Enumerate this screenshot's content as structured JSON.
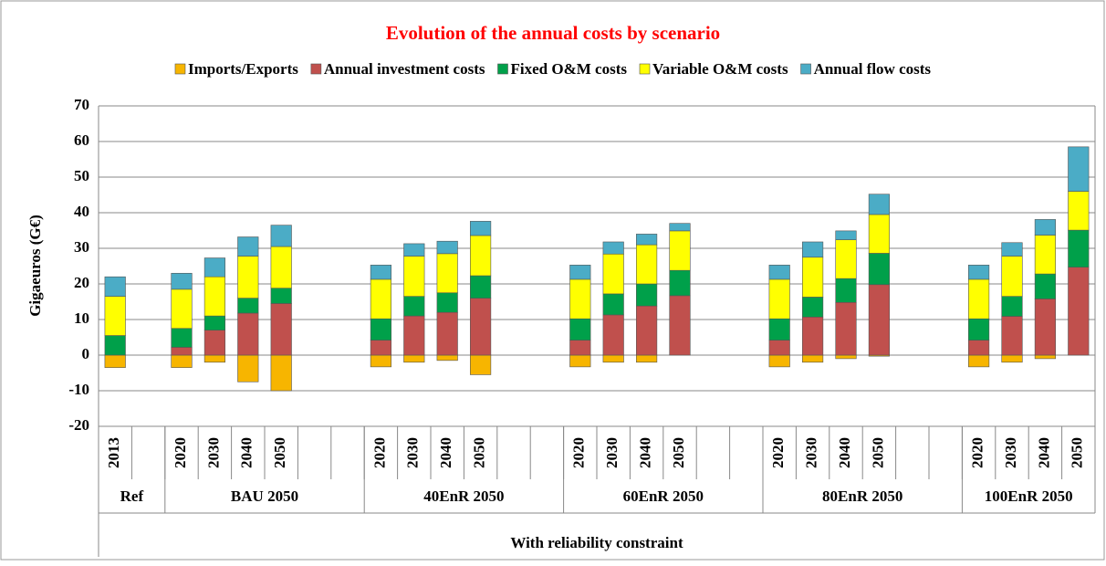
{
  "chart_data": {
    "type": "stacked-bar",
    "title": "Evolution of the annual costs by scenario",
    "y_label": "Gigaeuros (G€)",
    "x_label": "With reliability constraint",
    "groups": [
      {
        "name": "Ref",
        "categories": [
          "2013",
          null
        ]
      },
      {
        "name": "BAU 2050",
        "categories": [
          "2020",
          "2030",
          "2040",
          "2050",
          null,
          null
        ]
      },
      {
        "name": "40EnR 2050",
        "categories": [
          "2020",
          "2030",
          "2040",
          "2050",
          null,
          null
        ]
      },
      {
        "name": "60EnR 2050",
        "categories": [
          "2020",
          "2030",
          "2040",
          "2050",
          null,
          null
        ]
      },
      {
        "name": "80EnR 2050",
        "categories": [
          "2020",
          "2030",
          "2040",
          "2050",
          null,
          null
        ]
      },
      {
        "name": "100EnR 2050",
        "categories": [
          "2020",
          "2030",
          "2040",
          "2050"
        ]
      }
    ],
    "series": [
      {
        "name": "Imports/Exports",
        "color": "#f7b500",
        "values": [
          -3.5,
          null,
          -3.5,
          -2,
          -7.5,
          -10,
          null,
          null,
          -3.3,
          -2,
          -1.5,
          -5.5,
          null,
          null,
          -3.3,
          -2,
          -2,
          0,
          null,
          null,
          -3.3,
          -2,
          -1,
          -0.3,
          null,
          null,
          -3.3,
          -2,
          -1,
          0
        ]
      },
      {
        "name": "Annual investment costs",
        "color": "#c0504d",
        "values": [
          0,
          null,
          2.2,
          7,
          11.8,
          14.5,
          null,
          null,
          4.2,
          11,
          12,
          16,
          null,
          null,
          4.2,
          11.3,
          13.8,
          16.7,
          null,
          null,
          4.2,
          10.7,
          14.8,
          19.8,
          null,
          null,
          4.2,
          10.9,
          15.8,
          24.7
        ]
      },
      {
        "name": "Fixed O&M costs",
        "color": "#00a04a",
        "values": [
          5.5,
          null,
          5.3,
          4,
          4.2,
          4.3,
          null,
          null,
          6,
          5.5,
          5.5,
          6.3,
          null,
          null,
          6,
          5.9,
          6.2,
          7.1,
          null,
          null,
          6,
          5.6,
          6.7,
          8.8,
          null,
          null,
          6,
          5.6,
          7,
          10.4
        ]
      },
      {
        "name": "Variable O&M costs",
        "color": "#ffff00",
        "values": [
          11,
          null,
          11,
          11,
          11.8,
          11.7,
          null,
          null,
          11.1,
          11.3,
          11,
          11.3,
          null,
          null,
          11.1,
          11.2,
          11,
          11.1,
          null,
          null,
          11.1,
          11.2,
          10.9,
          10.9,
          null,
          null,
          11.1,
          11.3,
          10.9,
          10.9
        ]
      },
      {
        "name": "Annual flow costs",
        "color": "#4bacc6",
        "values": [
          5.5,
          null,
          4.5,
          5.3,
          5.4,
          6,
          null,
          null,
          4,
          3.5,
          3.5,
          4,
          null,
          null,
          4,
          3.4,
          3,
          2.1,
          null,
          null,
          4,
          4.3,
          2.5,
          5.7,
          null,
          null,
          4,
          3.8,
          4.4,
          12.5
        ]
      }
    ],
    "ylim": [
      -20,
      70
    ],
    "yticks": [
      -20,
      -10,
      0,
      10,
      20,
      30,
      40,
      50,
      60,
      70
    ],
    "grid": true
  }
}
